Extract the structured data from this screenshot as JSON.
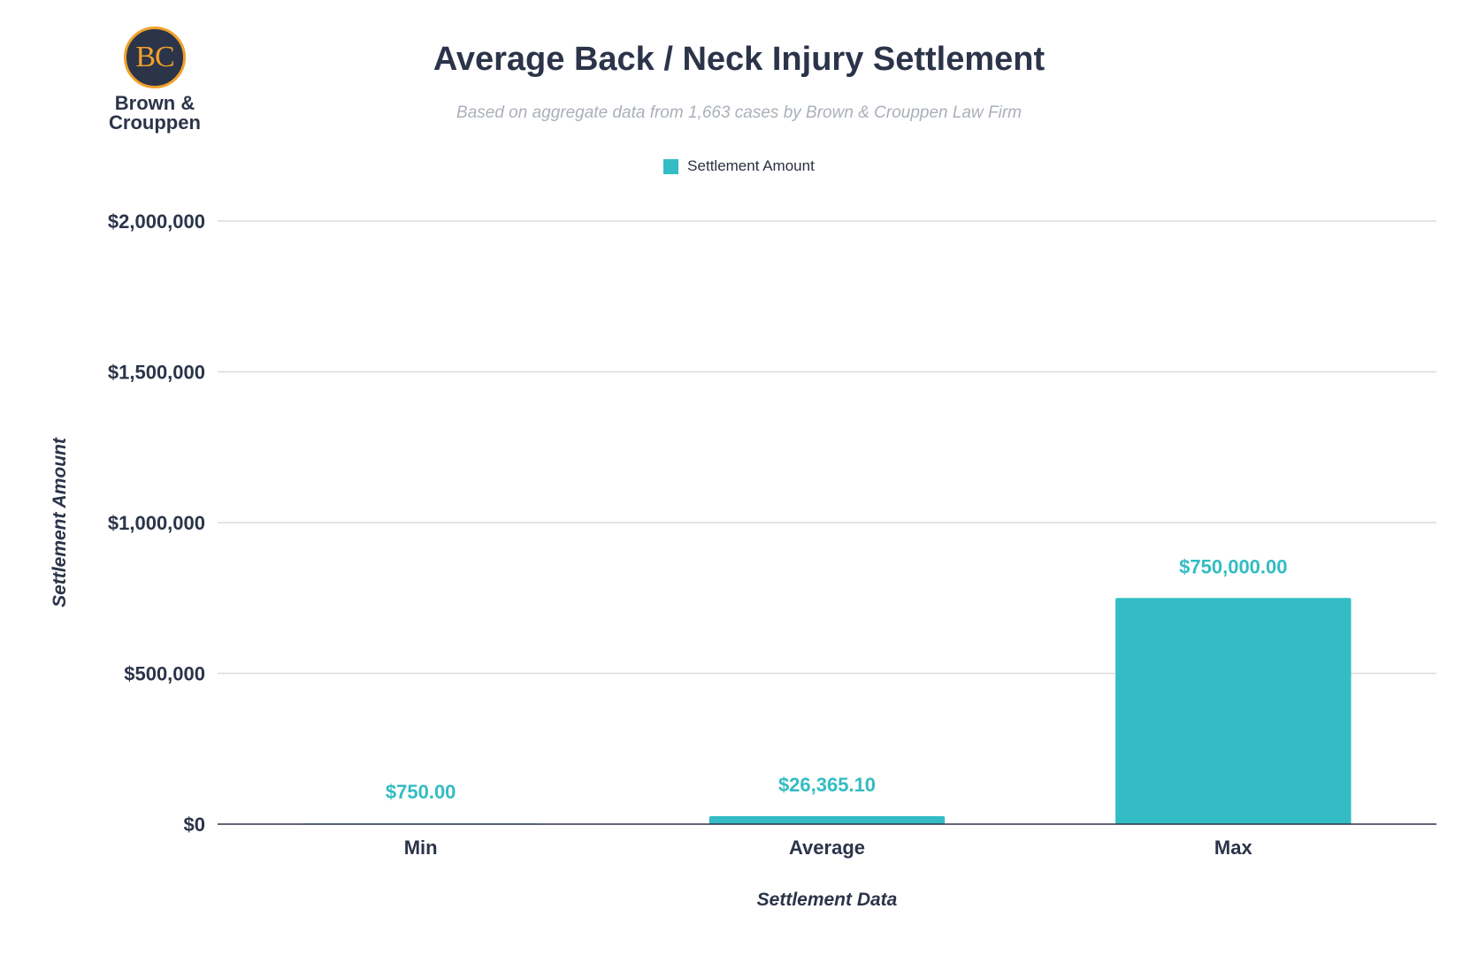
{
  "logo": {
    "initials": "BC",
    "name": "Brown &\nCrouppen"
  },
  "colors": {
    "bar": "#33bcc3",
    "label": "#33bcc3",
    "grid": "#dcdcdc",
    "axis": "#2b3449",
    "logo_navy": "#2b3449",
    "logo_gold": "#f0a12a"
  },
  "chart_data": {
    "type": "bar",
    "title": "Average Back / Neck Injury Settlement",
    "subtitle": "Based on aggregate data from 1,663 cases by Brown & Crouppen Law Firm",
    "xlabel": "Settlement Data",
    "ylabel": "Settlement Amount",
    "categories": [
      "Min",
      "Average",
      "Max"
    ],
    "series": [
      {
        "name": "Settlement Amount",
        "values": [
          750,
          26365.1,
          750000
        ],
        "data_labels": [
          "$750.00",
          "$26,365.10",
          "$750,000.00"
        ]
      }
    ],
    "ylim": [
      0,
      2000000
    ],
    "yticks": [
      0,
      500000,
      1000000,
      1500000,
      2000000
    ],
    "ytick_labels": [
      "$0",
      "$500,000",
      "$1,000,000",
      "$1,500,000",
      "$2,000,000"
    ],
    "grid": true,
    "legend": "top-center"
  }
}
